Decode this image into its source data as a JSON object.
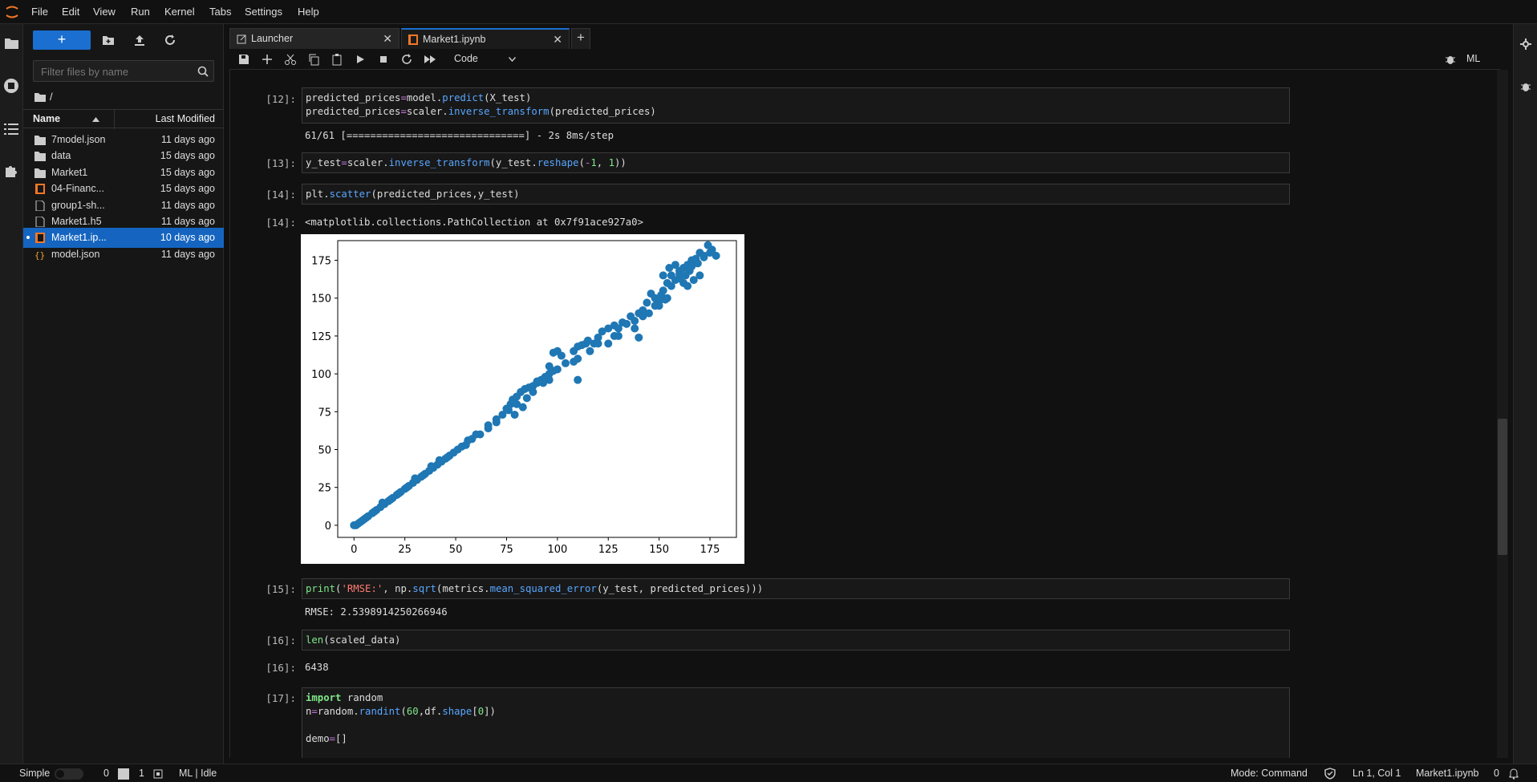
{
  "menubar": {
    "items": [
      "File",
      "Edit",
      "View",
      "Run",
      "Kernel",
      "Tabs",
      "Settings",
      "Help"
    ]
  },
  "filebrowser": {
    "new_label": "+",
    "search_placeholder": "Filter files by name",
    "breadcrumb": "/",
    "col_name": "Name",
    "col_modified": "Last Modified",
    "files": [
      {
        "name": "7model.json",
        "modified": "11 days ago",
        "icon": "folder-icon"
      },
      {
        "name": "data",
        "modified": "15 days ago",
        "icon": "folder-icon"
      },
      {
        "name": "Market1",
        "modified": "15 days ago",
        "icon": "folder-icon"
      },
      {
        "name": "04-Financ...",
        "modified": "15 days ago",
        "icon": "notebook-icon"
      },
      {
        "name": "group1-sh...",
        "modified": "11 days ago",
        "icon": "file-icon"
      },
      {
        "name": "Market1.h5",
        "modified": "11 days ago",
        "icon": "file-icon"
      },
      {
        "name": "Market1.ip...",
        "modified": "10 days ago",
        "icon": "notebook-icon",
        "selected": true
      },
      {
        "name": "model.json",
        "modified": "11 days ago",
        "icon": "json-icon"
      }
    ]
  },
  "tabs": [
    {
      "label": "Launcher",
      "active": false
    },
    {
      "label": "Market1.ipynb",
      "active": true
    }
  ],
  "toolbar": {
    "cell_type": "Code",
    "kernel": "ML"
  },
  "cells": {
    "c12": {
      "prompt": "[12]:",
      "output": "61/61 [==============================] - 2s 8ms/step"
    },
    "c13": {
      "prompt": "[13]:"
    },
    "c14": {
      "prompt": "[14]:",
      "out_prompt": "[14]:",
      "output": "<matplotlib.collections.PathCollection at 0x7f91ace927a0>"
    },
    "c15": {
      "prompt": "[15]:",
      "output": "RMSE: 2.5398914250266946"
    },
    "c16": {
      "prompt": "[16]:",
      "out_prompt": "[16]:",
      "output": "6438"
    },
    "c17": {
      "prompt": "[17]:"
    }
  },
  "chart_data": {
    "type": "scatter",
    "title": "",
    "xlabel": "",
    "ylabel": "",
    "xlim": [
      -8,
      188
    ],
    "ylim": [
      -8,
      188
    ],
    "xticks": [
      0,
      25,
      50,
      75,
      100,
      125,
      150,
      175
    ],
    "yticks": [
      0,
      25,
      50,
      75,
      100,
      125,
      150,
      175
    ],
    "color": "#1f77b4",
    "series": [
      {
        "points": [
          [
            1,
            0
          ],
          [
            3,
            2
          ],
          [
            5,
            4
          ],
          [
            7,
            6
          ],
          [
            9,
            8
          ],
          [
            11,
            10
          ],
          [
            13,
            12
          ],
          [
            15,
            14
          ],
          [
            17,
            16
          ],
          [
            19,
            18
          ],
          [
            21,
            20
          ],
          [
            23,
            22
          ],
          [
            25,
            24
          ],
          [
            27,
            26
          ],
          [
            29,
            28
          ],
          [
            31,
            30
          ],
          [
            33,
            32
          ],
          [
            35,
            34
          ],
          [
            37,
            36
          ],
          [
            39,
            38
          ],
          [
            41,
            40
          ],
          [
            43,
            42
          ],
          [
            45,
            44
          ],
          [
            47,
            46
          ],
          [
            49,
            48
          ],
          [
            51,
            50
          ],
          [
            55,
            53
          ],
          [
            58,
            57
          ],
          [
            62,
            60
          ],
          [
            66,
            64
          ],
          [
            70,
            70
          ],
          [
            73,
            73
          ],
          [
            75,
            77
          ],
          [
            77,
            80
          ],
          [
            78,
            83
          ],
          [
            80,
            85
          ],
          [
            82,
            88
          ],
          [
            84,
            90
          ],
          [
            86,
            91
          ],
          [
            88,
            92
          ],
          [
            90,
            94
          ],
          [
            92,
            96
          ],
          [
            94,
            98
          ],
          [
            96,
            100
          ],
          [
            98,
            102
          ],
          [
            100,
            103
          ],
          [
            96,
            96
          ],
          [
            93,
            94
          ],
          [
            88,
            88
          ],
          [
            85,
            84
          ],
          [
            80,
            80
          ],
          [
            76,
            76
          ],
          [
            79,
            73
          ],
          [
            83,
            78
          ],
          [
            98,
            114
          ],
          [
            100,
            115
          ],
          [
            104,
            107
          ],
          [
            108,
            108
          ],
          [
            110,
            110
          ],
          [
            112,
            119
          ],
          [
            114,
            120
          ],
          [
            116,
            115
          ],
          [
            118,
            120
          ],
          [
            120,
            124
          ],
          [
            122,
            128
          ],
          [
            125,
            130
          ],
          [
            128,
            132
          ],
          [
            130,
            130
          ],
          [
            132,
            134
          ],
          [
            134,
            133
          ],
          [
            136,
            138
          ],
          [
            138,
            135
          ],
          [
            140,
            140
          ],
          [
            142,
            142
          ],
          [
            144,
            147
          ],
          [
            146,
            153
          ],
          [
            148,
            150
          ],
          [
            150,
            145
          ],
          [
            152,
            155
          ],
          [
            154,
            160
          ],
          [
            156,
            165
          ],
          [
            158,
            162
          ],
          [
            160,
            168
          ],
          [
            162,
            170
          ],
          [
            164,
            172
          ],
          [
            166,
            175
          ],
          [
            168,
            176
          ],
          [
            170,
            180
          ],
          [
            172,
            178
          ],
          [
            174,
            185
          ],
          [
            176,
            182
          ],
          [
            178,
            178
          ],
          [
            152,
            165
          ],
          [
            155,
            170
          ],
          [
            158,
            172
          ],
          [
            160,
            166
          ],
          [
            162,
            160
          ],
          [
            165,
            168
          ],
          [
            110,
            96
          ],
          [
            120,
            120
          ],
          [
            130,
            125
          ],
          [
            140,
            124
          ],
          [
            145,
            140
          ],
          [
            150,
            148
          ],
          [
            108,
            115
          ],
          [
            102,
            112
          ],
          [
            96,
            105
          ],
          [
            90,
            95
          ],
          [
            70,
            68
          ],
          [
            66,
            66
          ],
          [
            60,
            60
          ],
          [
            56,
            56
          ],
          [
            53,
            52
          ],
          [
            46,
            45
          ],
          [
            42,
            43
          ],
          [
            38,
            39
          ],
          [
            34,
            33
          ],
          [
            30,
            31
          ],
          [
            26,
            25
          ],
          [
            22,
            21
          ],
          [
            18,
            17
          ],
          [
            14,
            15
          ],
          [
            10,
            9
          ],
          [
            6,
            5
          ],
          [
            4,
            3
          ],
          [
            2,
            1
          ],
          [
            0,
            0
          ],
          [
            110,
            118
          ],
          [
            115,
            122
          ],
          [
            125,
            120
          ],
          [
            128,
            125
          ],
          [
            138,
            130
          ],
          [
            142,
            138
          ],
          [
            148,
            145
          ],
          [
            154,
            150
          ],
          [
            156,
            158
          ],
          [
            160,
            163
          ],
          [
            163,
            165
          ],
          [
            166,
            171
          ],
          [
            169,
            173
          ],
          [
            172,
            177
          ],
          [
            175,
            180
          ],
          [
            170,
            165
          ],
          [
            167,
            162
          ],
          [
            164,
            158
          ],
          [
            153,
            149
          ],
          [
            151,
            152
          ]
        ]
      }
    ]
  },
  "statusbar": {
    "mode_label": "Simple",
    "count1": "0",
    "count2": "1",
    "kernel_status": "ML | Idle",
    "mode": "Mode: Command",
    "position": "Ln 1, Col 1",
    "filename": "Market1.ipynb",
    "notifications": "0"
  }
}
